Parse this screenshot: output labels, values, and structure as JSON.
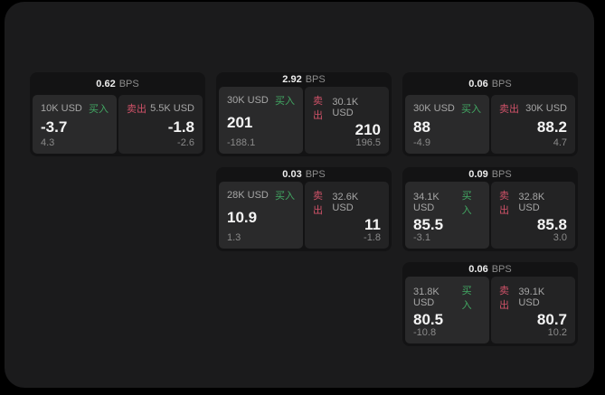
{
  "units": {
    "bps": "BPS"
  },
  "labels": {
    "buy": "买入",
    "sell": "卖出"
  },
  "colors": {
    "background": "#000000",
    "surface": "#1b1b1c",
    "card": "#131314",
    "panel_buy": "#2a2a2b",
    "panel_sell": "#232324",
    "buy_green": "#42a863",
    "sell_red": "#cf5268"
  },
  "cards": [
    {
      "bps": "0.62",
      "buy": {
        "amount": "10K USD",
        "price": "-3.7",
        "delta": "4.3"
      },
      "sell": {
        "amount": "5.5K USD",
        "price": "-1.8",
        "delta": "-2.6"
      }
    },
    {
      "bps": "2.92",
      "buy": {
        "amount": "30K USD",
        "price": "201",
        "delta": "-188.1"
      },
      "sell": {
        "amount": "30.1K USD",
        "price": "210",
        "delta": "196.5"
      }
    },
    {
      "bps": "0.06",
      "buy": {
        "amount": "30K USD",
        "price": "88",
        "delta": "-4.9"
      },
      "sell": {
        "amount": "30K USD",
        "price": "88.2",
        "delta": "4.7"
      }
    },
    {
      "bps": "0.03",
      "buy": {
        "amount": "28K USD",
        "price": "10.9",
        "delta": "1.3"
      },
      "sell": {
        "amount": "32.6K USD",
        "price": "11",
        "delta": "-1.8"
      }
    },
    {
      "bps": "0.09",
      "buy": {
        "amount": "34.1K USD",
        "price": "85.5",
        "delta": "-3.1"
      },
      "sell": {
        "amount": "32.8K USD",
        "price": "85.8",
        "delta": "3.0"
      }
    },
    {
      "bps": "0.06",
      "buy": {
        "amount": "31.8K USD",
        "price": "80.5",
        "delta": "-10.8"
      },
      "sell": {
        "amount": "39.1K USD",
        "price": "80.7",
        "delta": "10.2"
      }
    }
  ]
}
